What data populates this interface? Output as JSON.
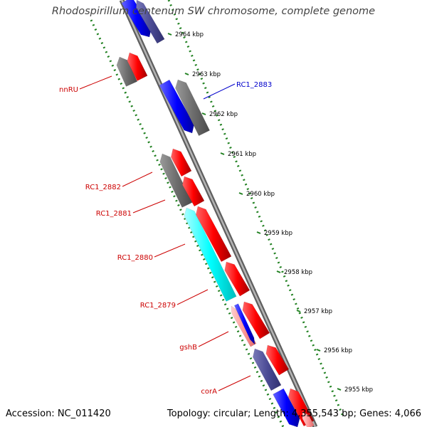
{
  "title": "Rhodospirillum centenum SW chromosome, complete genome",
  "footer": {
    "accession": "Accession: NC_011420",
    "topology": "Topology: circular; Length: 4,355,543 bp; Genes: 4,066"
  },
  "colors": {
    "forward_gene": "#ff0000",
    "reverse_gene": "#0000ff",
    "grey_feature": "#6e6e6e",
    "slate_feature": "#4c4c96",
    "cyan_feature": "#00ffff",
    "pink_feature": "#ff9999",
    "backbone": "#8c8c8c",
    "scale_ticks": "#208020",
    "label_red": "#cc0000",
    "label_blue": "#0000cc"
  },
  "scale": {
    "unit": "kbp",
    "ticks": [
      "2964 kbp",
      "2963 kbp",
      "2962 kbp",
      "2961 kbp",
      "2960 kbp",
      "2959 kbp",
      "2958 kbp",
      "2957 kbp",
      "2956 kbp",
      "2955 kbp"
    ]
  },
  "gene_labels": [
    {
      "name": "nnRU",
      "color": "#cc0000"
    },
    {
      "name": "RC1_2883",
      "color": "#0000cc"
    },
    {
      "name": "RC1_2882",
      "color": "#cc0000"
    },
    {
      "name": "RC1_2881",
      "color": "#cc0000"
    },
    {
      "name": "RC1_2880",
      "color": "#cc0000"
    },
    {
      "name": "RC1_2879",
      "color": "#cc0000"
    },
    {
      "name": "gshB",
      "color": "#cc0000"
    },
    {
      "name": "corA",
      "color": "#cc0000"
    }
  ]
}
